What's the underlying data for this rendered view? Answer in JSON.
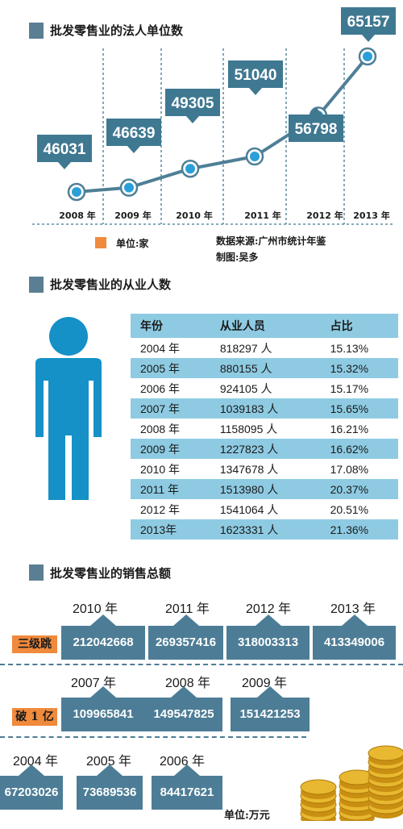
{
  "section1": {
    "title": "批发零售业的法人单位数",
    "unit_label": "单位:家",
    "source": "数据来源:广州市统计年鉴",
    "credit": "制图:吴多"
  },
  "section2": {
    "title": "批发零售业的从业人数"
  },
  "section3": {
    "title": "批发零售业的销售总额",
    "unit_label": "单位:万元"
  },
  "colors": {
    "accent": "#3f7891",
    "table_band": "#8ecbe3",
    "tag": "#f08a3c",
    "coin": "#e8b830"
  },
  "chart_data": [
    {
      "type": "line",
      "title": "批发零售业的法人单位数",
      "categories": [
        "2008 年",
        "2009 年",
        "2010 年",
        "2011 年",
        "2012 年",
        "2013 年"
      ],
      "values": [
        46031,
        46639,
        49305,
        51040,
        56798,
        65157
      ],
      "value_labels": [
        "46031",
        "46639",
        "49305",
        "51040",
        "56798",
        "65157"
      ],
      "unit": "单位:家",
      "grid": "dashed vertical"
    },
    {
      "type": "table",
      "title": "批发零售业的从业人数",
      "columns": [
        "年份",
        "从业人员",
        "占比"
      ],
      "rows": [
        [
          "2004 年",
          "818297 人",
          "15.13%"
        ],
        [
          "2005 年",
          "880155 人",
          "15.32%"
        ],
        [
          "2006 年",
          "924105 人",
          "15.17%"
        ],
        [
          "2007 年",
          "1039183 人",
          "15.65%"
        ],
        [
          "2008 年",
          "1158095 人",
          "16.21%"
        ],
        [
          "2009 年",
          "1227823 人",
          "16.62%"
        ],
        [
          "2010 年",
          "1347678 人",
          "17.08%"
        ],
        [
          "2011 年",
          "1513980 人",
          "20.37%"
        ],
        [
          "2012 年",
          "1541064 人",
          "20.51%"
        ],
        [
          "2013年",
          "1623331 人",
          "21.36%"
        ]
      ]
    },
    {
      "type": "table",
      "title": "批发零售业的销售总额",
      "unit": "单位:万元",
      "groups": [
        {
          "tag": "三级跳",
          "items": [
            {
              "year": "2010 年",
              "value": "212042668"
            },
            {
              "year": "2011 年",
              "value": "269357416"
            },
            {
              "year": "2012 年",
              "value": "318003313"
            },
            {
              "year": "2013 年",
              "value": "413349006"
            }
          ]
        },
        {
          "tag": "破 1 亿",
          "items": [
            {
              "year": "2007 年",
              "value": "109965841"
            },
            {
              "year": "2008 年",
              "value": "149547825"
            },
            {
              "year": "2009 年",
              "value": "151421253"
            }
          ]
        },
        {
          "tag": "",
          "items": [
            {
              "year": "2004 年",
              "value": "67203026"
            },
            {
              "year": "2005 年",
              "value": "73689536"
            },
            {
              "year": "2006 年",
              "value": "84417621"
            }
          ]
        }
      ]
    }
  ]
}
